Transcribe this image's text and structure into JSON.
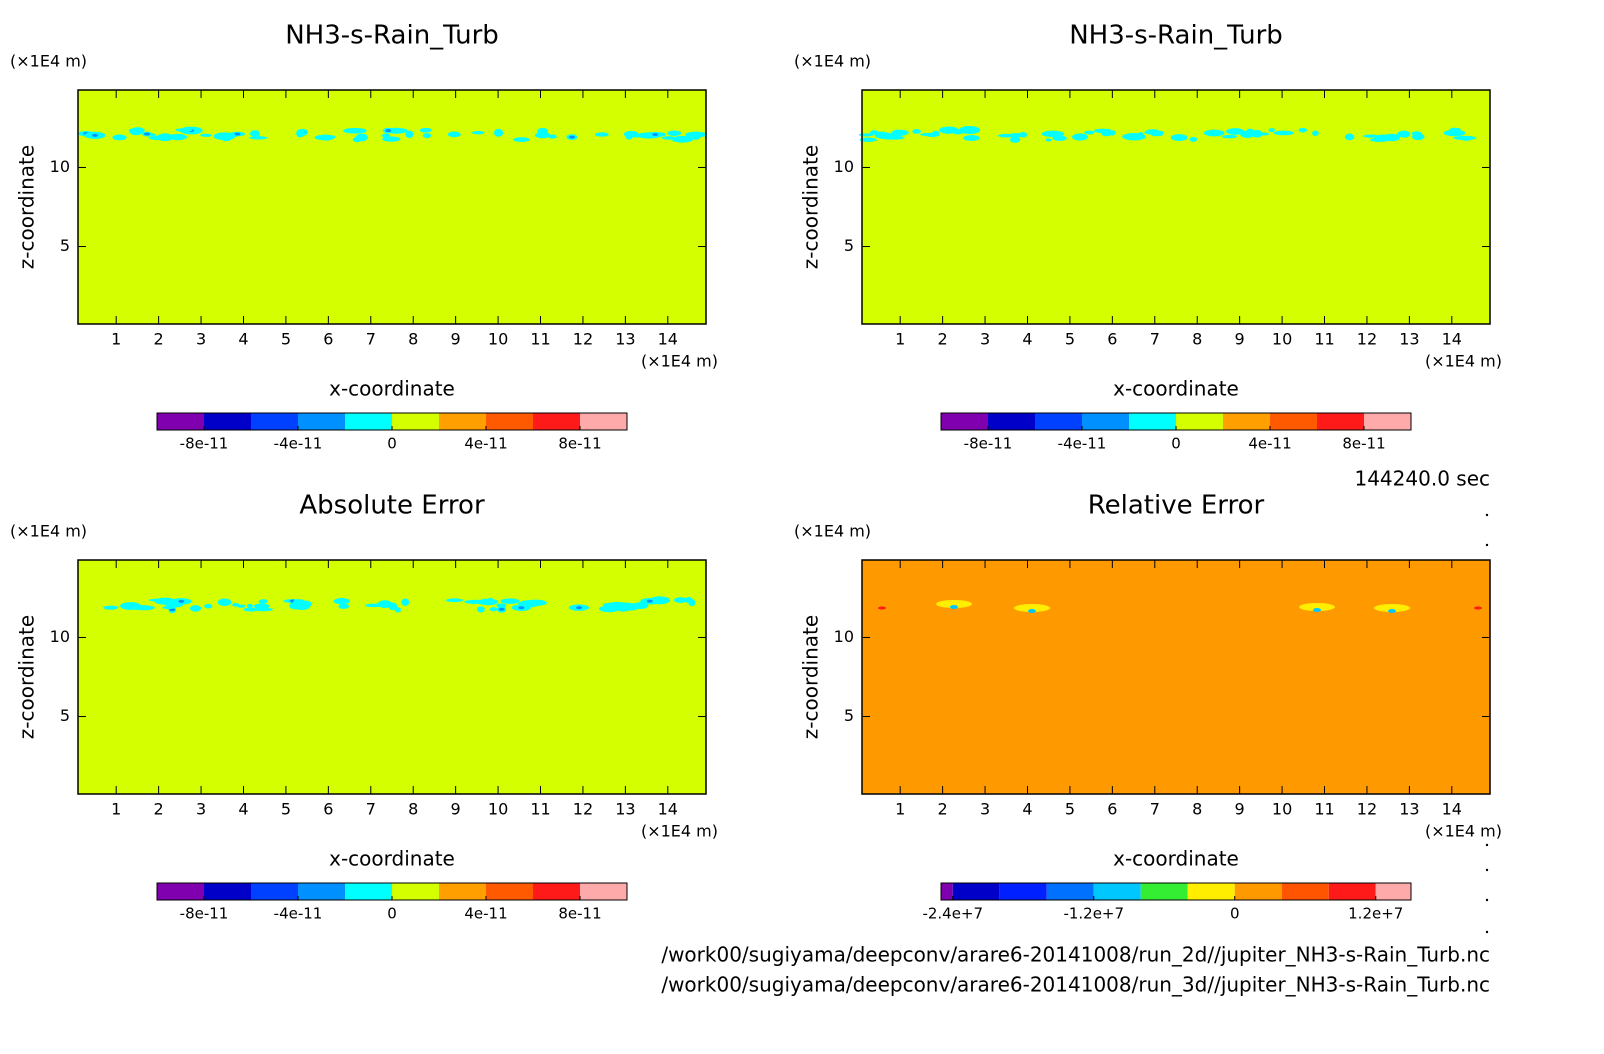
{
  "chart_data": [
    {
      "type": "contour",
      "title": "NH3-s-Rain_Turb",
      "x_label": "x-coordinate",
      "y_label": "z-coordinate",
      "x_unit": "(×1E4 m)",
      "y_unit": "(×1E4 m)",
      "xlim": [
        0.1,
        14.9
      ],
      "ylim": [
        0.1,
        14.9
      ],
      "xticks": [
        1,
        2,
        3,
        4,
        5,
        6,
        7,
        8,
        9,
        10,
        11,
        12,
        13,
        14
      ],
      "yticks": [
        5,
        10
      ],
      "color": "#d4ff00",
      "colorbar": {
        "levels": [
          -1e-10,
          -8e-11,
          -6e-11,
          -4e-11,
          -2e-11,
          0,
          2e-11,
          4e-11,
          6e-11,
          8e-11,
          1e-10
        ],
        "colors": [
          "#8000b0",
          "#0000c8",
          "#0040ff",
          "#0090ff",
          "#00ffff",
          "#d4ff00",
          "#ffa000",
          "#ff5a00",
          "#ff1a1a",
          "#ffaaaa"
        ],
        "ticks": [
          {
            "value": -8e-11,
            "label": "-8e-11"
          },
          {
            "value": -4e-11,
            "label": "-4e-11"
          },
          0,
          {
            "value": 4e-11,
            "label": "4e-11"
          },
          {
            "value": 8e-11,
            "label": "8e-11"
          }
        ]
      }
    },
    {
      "type": "contour",
      "title": "NH3-s-Rain_Turb",
      "x_label": "x-coordinate",
      "y_label": "z-coordinate",
      "x_unit": "(×1E4 m)",
      "y_unit": "(×1E4 m)",
      "xlim": [
        0.1,
        14.9
      ],
      "ylim": [
        0.1,
        14.9
      ],
      "xticks": [
        1,
        2,
        3,
        4,
        5,
        6,
        7,
        8,
        9,
        10,
        11,
        12,
        13,
        14
      ],
      "yticks": [
        5,
        10
      ],
      "color": "#d4ff00",
      "colorbar": {
        "levels": [
          -1e-10,
          -8e-11,
          -6e-11,
          -4e-11,
          -2e-11,
          0,
          2e-11,
          4e-11,
          6e-11,
          8e-11,
          1e-10
        ],
        "colors": [
          "#8000b0",
          "#0000c8",
          "#0040ff",
          "#0090ff",
          "#00ffff",
          "#d4ff00",
          "#ffa000",
          "#ff5a00",
          "#ff1a1a",
          "#ffaaaa"
        ],
        "ticks": [
          {
            "value": -8e-11,
            "label": "-8e-11"
          },
          {
            "value": -4e-11,
            "label": "-4e-11"
          },
          0,
          {
            "value": 4e-11,
            "label": "4e-11"
          },
          {
            "value": 8e-11,
            "label": "8e-11"
          }
        ]
      }
    },
    {
      "type": "contour",
      "title": "Absolute Error",
      "x_label": "x-coordinate",
      "y_label": "z-coordinate",
      "x_unit": "(×1E4 m)",
      "y_unit": "(×1E4 m)",
      "xlim": [
        0.1,
        14.9
      ],
      "ylim": [
        0.1,
        14.9
      ],
      "xticks": [
        1,
        2,
        3,
        4,
        5,
        6,
        7,
        8,
        9,
        10,
        11,
        12,
        13,
        14
      ],
      "yticks": [
        5,
        10
      ],
      "color": "#d4ff00",
      "colorbar": {
        "levels": [
          -1e-10,
          -8e-11,
          -6e-11,
          -4e-11,
          -2e-11,
          0,
          2e-11,
          4e-11,
          6e-11,
          8e-11,
          1e-10
        ],
        "colors": [
          "#8000b0",
          "#0000c8",
          "#0040ff",
          "#0090ff",
          "#00ffff",
          "#d4ff00",
          "#ffa000",
          "#ff5a00",
          "#ff1a1a",
          "#ffaaaa"
        ],
        "ticks": [
          {
            "value": -8e-11,
            "label": "-8e-11"
          },
          {
            "value": -4e-11,
            "label": "-4e-11"
          },
          0,
          {
            "value": 4e-11,
            "label": "4e-11"
          },
          {
            "value": 8e-11,
            "label": "8e-11"
          }
        ]
      }
    },
    {
      "type": "contour",
      "title": "Relative Error",
      "x_label": "x-coordinate",
      "y_label": "z-coordinate",
      "x_unit": "(×1E4 m)",
      "y_unit": "(×1E4 m)",
      "xlim": [
        0.1,
        14.9
      ],
      "ylim": [
        0.1,
        14.9
      ],
      "xticks": [
        1,
        2,
        3,
        4,
        5,
        6,
        7,
        8,
        9,
        10,
        11,
        12,
        13,
        14
      ],
      "yticks": [
        5,
        10
      ],
      "color": "#ff9900",
      "colorbar": {
        "levels": [
          -25000000.0,
          -24000000.0,
          -20000000.0,
          -16000000.0,
          -12000000.0,
          -8000000.0,
          -4000000.0,
          0,
          4000000.0,
          8000000.0,
          12000000.0,
          15000000.0
        ],
        "colors": [
          "#8000b0",
          "#0000c8",
          "#0020ff",
          "#0070ff",
          "#00c8ff",
          "#33ee33",
          "#ffee00",
          "#ff9900",
          "#ff5500",
          "#ff1a1a",
          "#ffaaaa"
        ],
        "ticks": [
          {
            "value": -24000000.0,
            "label": "-2.4e+7"
          },
          {
            "value": -12000000.0,
            "label": "-1.2e+7"
          },
          0,
          {
            "value": 12000000.0,
            "label": "1.2e+7"
          }
        ]
      }
    }
  ],
  "time": "144240.0 sec",
  "files": [
    "/work00/sugiyama/deepconv/arare6-20141008/run_2d//jupiter_NH3-s-Rain_Turb.nc",
    "/work00/sugiyama/deepconv/arare6-20141008/run_3d//jupiter_NH3-s-Rain_Turb.nc"
  ]
}
